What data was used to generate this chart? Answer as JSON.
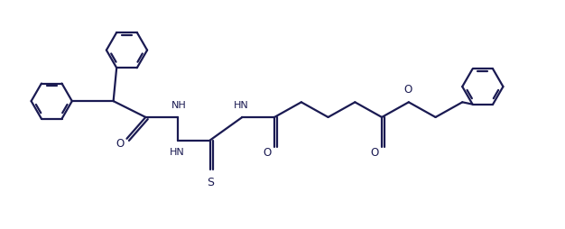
{
  "bg_color": "#ffffff",
  "line_color": "#1a1a52",
  "line_width": 1.6,
  "figsize": [
    6.26,
    2.54
  ],
  "dpi": 100,
  "xlim": [
    0,
    10.5
  ],
  "ylim": [
    0,
    4.2
  ]
}
